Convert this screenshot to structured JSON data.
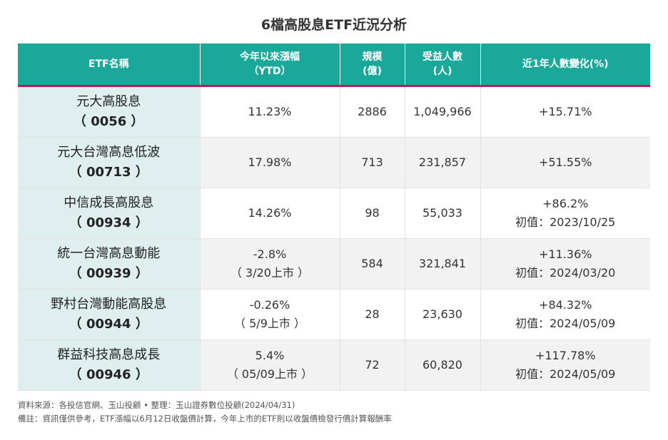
{
  "title": "6檔高股息ETF近況分析",
  "headers": {
    "name": "ETF名稱",
    "ytd_line1": "今年以來漲幅",
    "ytd_line2": "（YTD）",
    "scale_line1": "規模",
    "scale_line2": "(億)",
    "holders_line1": "受益人數",
    "holders_line2": "(人)",
    "change": "近1年人數變化(%)"
  },
  "rows": [
    {
      "name": "元大高股息",
      "code": "（ 0056 ）",
      "ytd1": "11.23%",
      "ytd2": "",
      "scale": "2886",
      "holders": "1,049,966",
      "change1": "+15.71%",
      "change2": ""
    },
    {
      "name": "元大台灣高息低波",
      "code": "（ 00713 ）",
      "ytd1": "17.98%",
      "ytd2": "",
      "scale": "713",
      "holders": "231,857",
      "change1": "+51.55%",
      "change2": ""
    },
    {
      "name": "中信成長高股息",
      "code": "（ 00934 ）",
      "ytd1": "14.26%",
      "ytd2": "",
      "scale": "98",
      "holders": "55,033",
      "change1": "+86.2%",
      "change2": "初值：2023/10/25"
    },
    {
      "name": "統一台灣高息動能",
      "code": "（ 00939 ）",
      "ytd1": "-2.8%",
      "ytd2": "（ 3/20上市 ）",
      "scale": "584",
      "holders": "321,841",
      "change1": "+11.36%",
      "change2": "初值：2024/03/20"
    },
    {
      "name": "野村台灣動能高股息",
      "code": "（ 00944 ）",
      "ytd1": "-0.26%",
      "ytd2": "（ 5/9上市 ）",
      "scale": "28",
      "holders": "23,630",
      "change1": "+84.32%",
      "change2": "初值：2024/05/09"
    },
    {
      "name": "群益科技高息成長",
      "code": "（ 00946 ）",
      "ytd1": "5.4%",
      "ytd2": "（ 05/09上市 ）",
      "scale": "72",
      "holders": "60,820",
      "change1": "+117.78%",
      "change2": "初值：2024/05/09"
    }
  ],
  "notes": {
    "source": "資料來源：各投信官網、玉山投顧 • 整理：玉山證券數位投顧(2024/04/31)",
    "remark": "備註：資訊僅供參考，ETF漲幅以6月12日收盤價計算，今年上市的ETF則以收盤價檢發行價計算報酬率"
  },
  "colors": {
    "header_bg": "#1aa89b",
    "header_rule": "#c2185b",
    "name_cell_bg": "#dfeeee",
    "alt_row_bg": "#f2f2f2"
  }
}
